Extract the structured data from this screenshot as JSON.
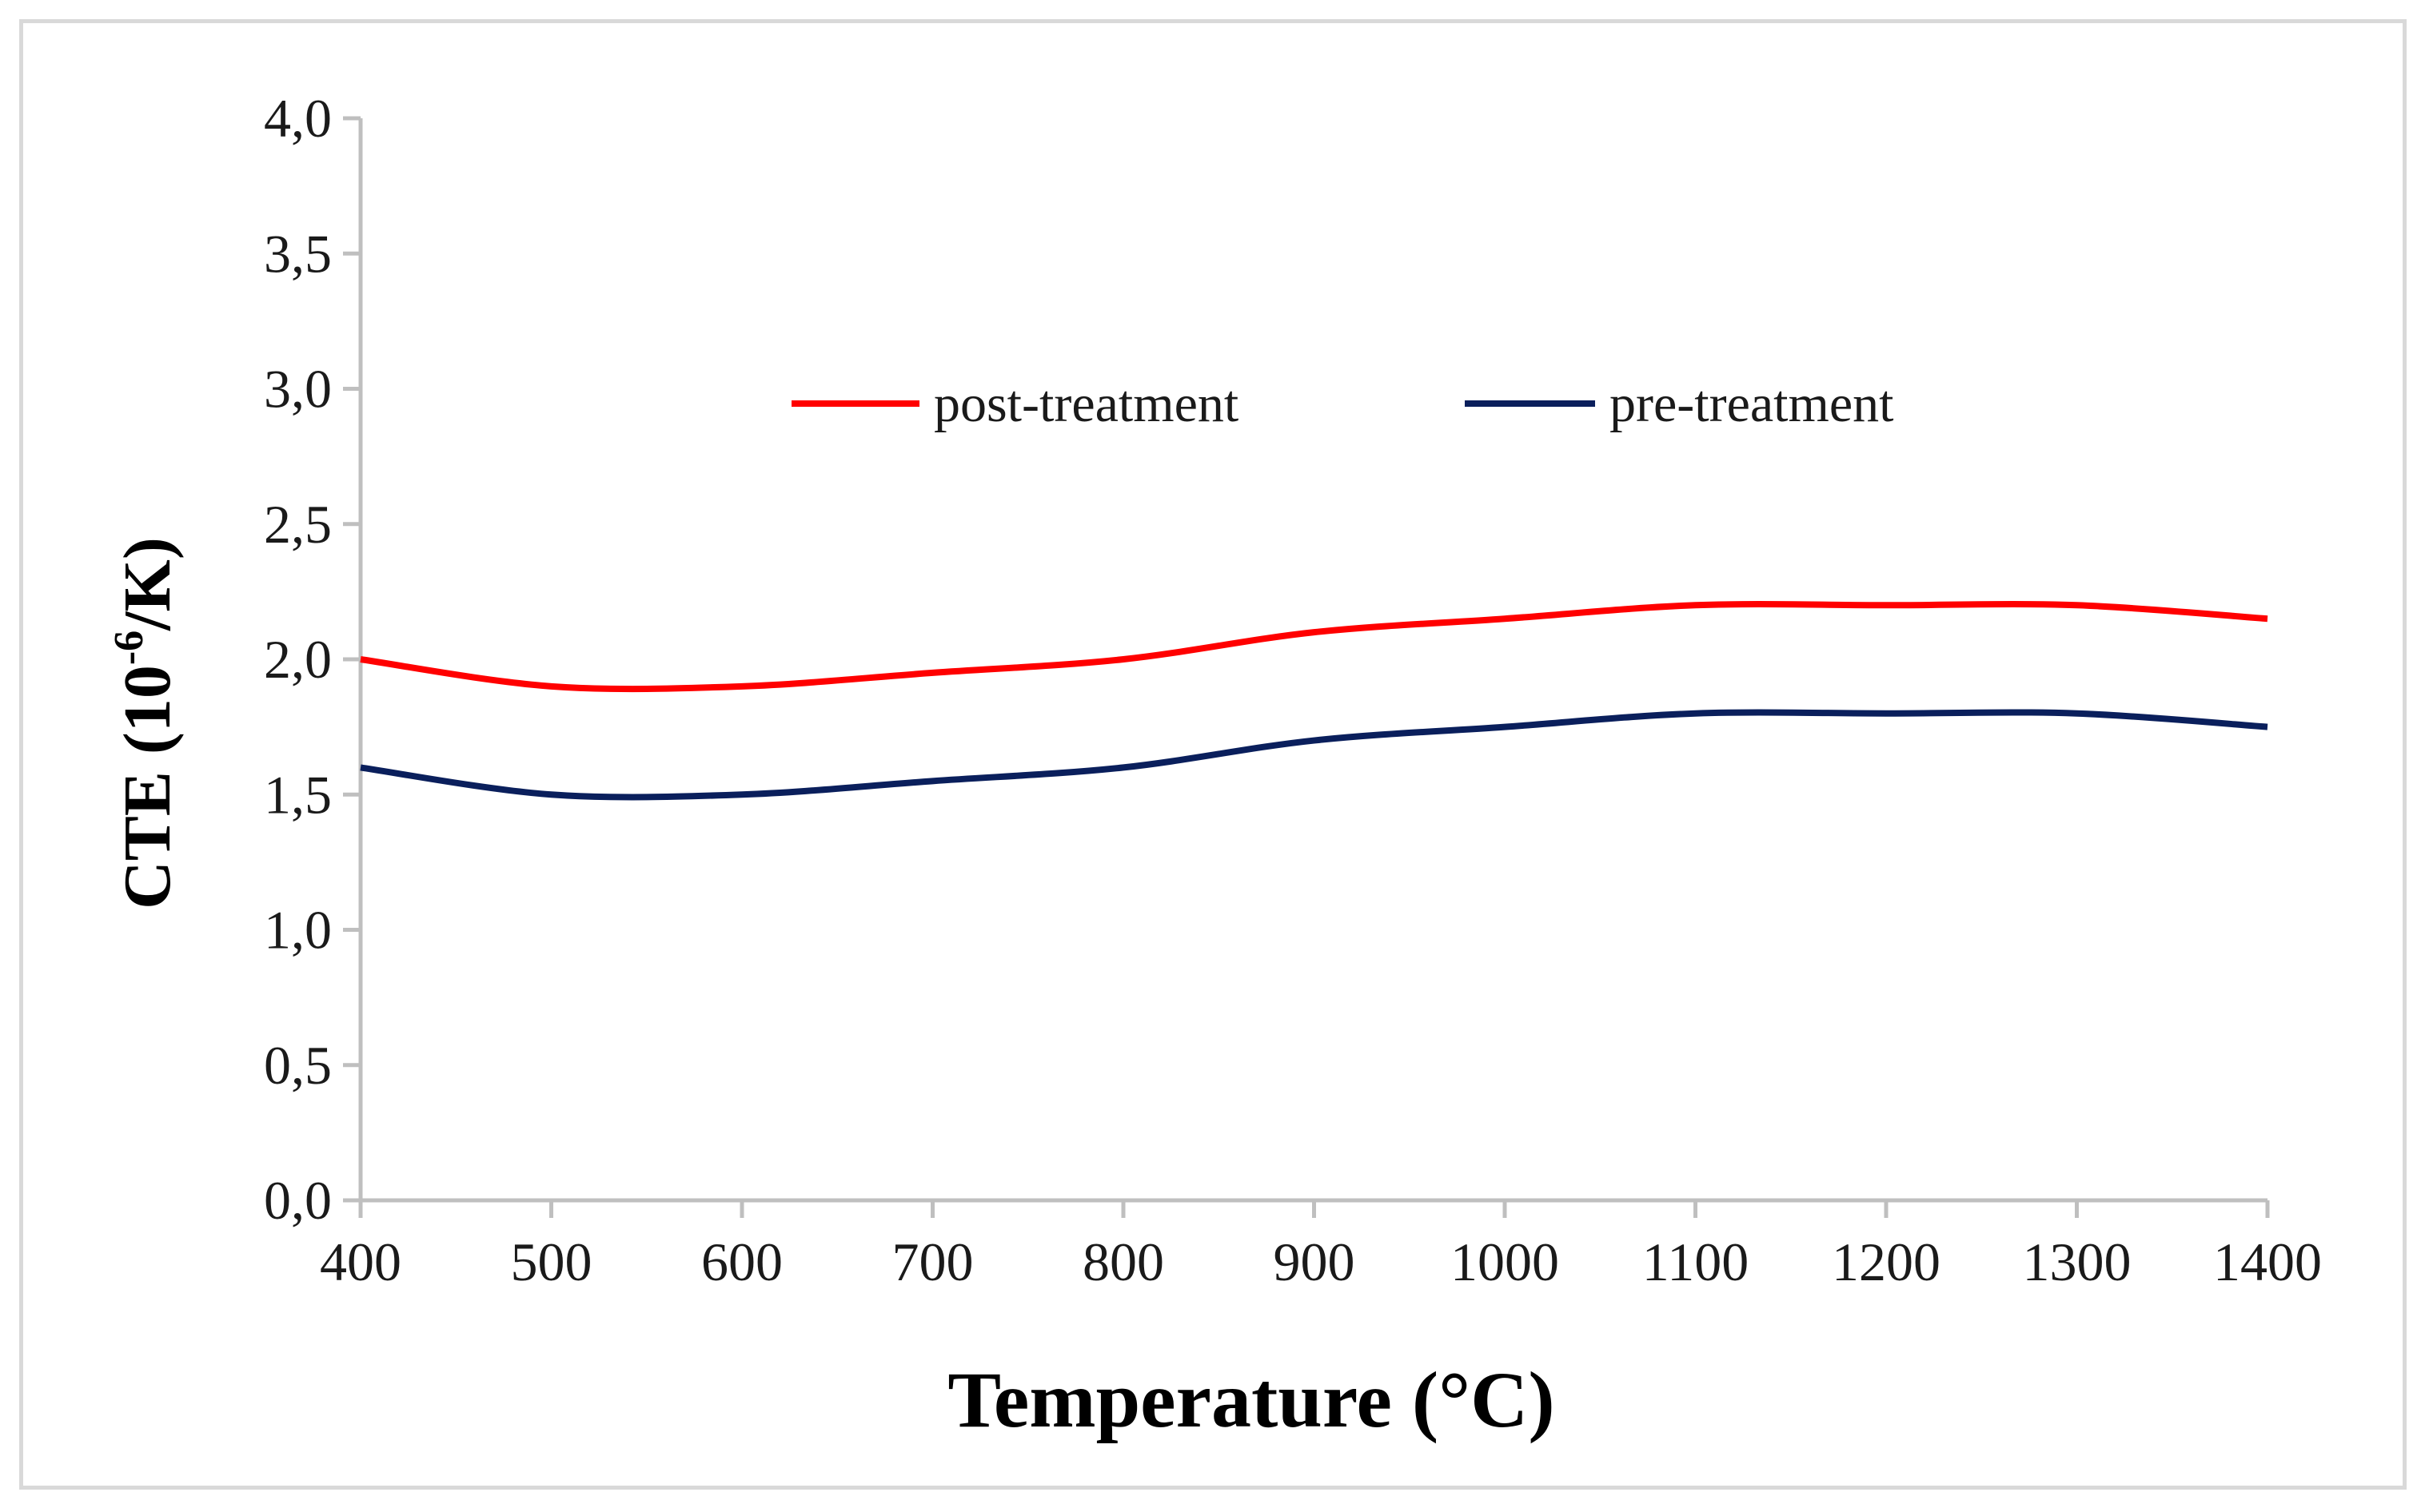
{
  "chart_data": {
    "type": "line",
    "title": "",
    "xlabel": "Temperature (°C)",
    "ylabel_main": "CTE (10",
    "ylabel_sup": "-6",
    "ylabel_end": "/K)",
    "x": [
      400,
      500,
      600,
      700,
      800,
      900,
      1000,
      1100,
      1200,
      1300,
      1400
    ],
    "x_tick_labels": [
      "400",
      "500",
      "600",
      "700",
      "800",
      "900",
      "1000",
      "1100",
      "1200",
      "1300",
      "1400"
    ],
    "xlim": [
      400,
      1400
    ],
    "y_ticks": [
      0,
      0.5,
      1,
      1.5,
      2,
      2.5,
      3,
      3.5,
      4
    ],
    "y_tick_labels": [
      "0,0",
      "0,5",
      "1,0",
      "1,5",
      "2,0",
      "2,5",
      "3,0",
      "3,5",
      "4,0"
    ],
    "ylim": [
      0,
      4
    ],
    "grid": false,
    "legend_position": "top-center",
    "series": [
      {
        "name": "post-treatment",
        "color": "#ff0000",
        "values": [
          2.0,
          1.9,
          1.9,
          1.95,
          2.0,
          2.1,
          2.15,
          2.2,
          2.2,
          2.2,
          2.15
        ]
      },
      {
        "name": "pre-treatment",
        "color": "#0a1f5c",
        "values": [
          1.6,
          1.5,
          1.5,
          1.55,
          1.6,
          1.7,
          1.75,
          1.8,
          1.8,
          1.8,
          1.75
        ]
      }
    ],
    "axis_color": "#bfbfbf"
  }
}
